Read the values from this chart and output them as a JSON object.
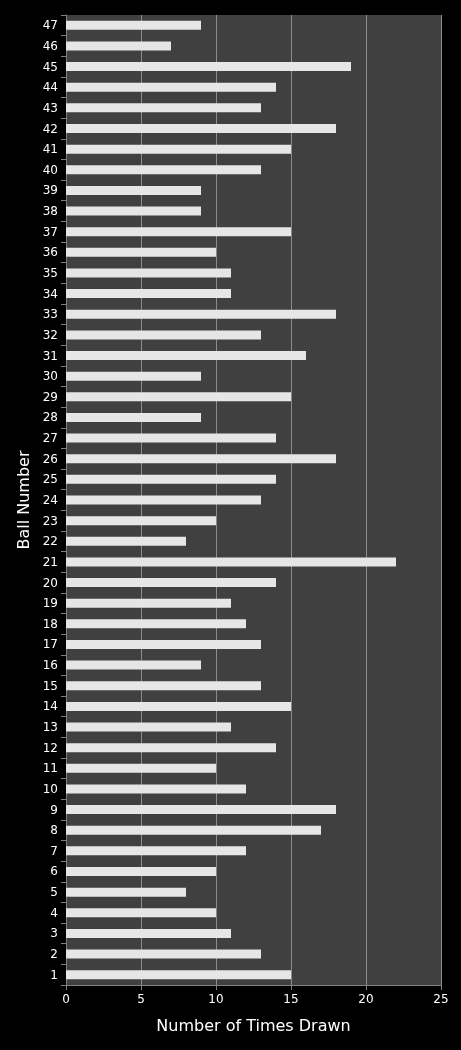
{
  "chart_data": {
    "type": "bar",
    "orientation": "horizontal",
    "xlabel": "Number of Times Drawn",
    "ylabel": "Ball Number",
    "categories": [
      "47",
      "46",
      "45",
      "44",
      "43",
      "42",
      "41",
      "40",
      "39",
      "38",
      "37",
      "36",
      "35",
      "34",
      "33",
      "32",
      "31",
      "30",
      "29",
      "28",
      "27",
      "26",
      "25",
      "24",
      "23",
      "22",
      "21",
      "20",
      "19",
      "18",
      "17",
      "16",
      "15",
      "14",
      "13",
      "12",
      "11",
      "10",
      "9",
      "8",
      "7",
      "6",
      "5",
      "4",
      "3",
      "2",
      "1"
    ],
    "values": [
      9,
      7,
      19,
      14,
      13,
      18,
      15,
      13,
      9,
      9,
      15,
      10,
      11,
      11,
      18,
      13,
      16,
      9,
      15,
      9,
      14,
      18,
      14,
      13,
      10,
      8,
      22,
      14,
      11,
      12,
      13,
      9,
      13,
      15,
      11,
      14,
      10,
      12,
      18,
      17,
      12,
      10,
      8,
      10,
      11,
      13,
      15
    ],
    "color": "#e6e6e6",
    "xlim": [
      0,
      25
    ],
    "xticks": [
      0,
      5,
      10,
      15,
      20,
      25
    ],
    "grid": "x"
  }
}
